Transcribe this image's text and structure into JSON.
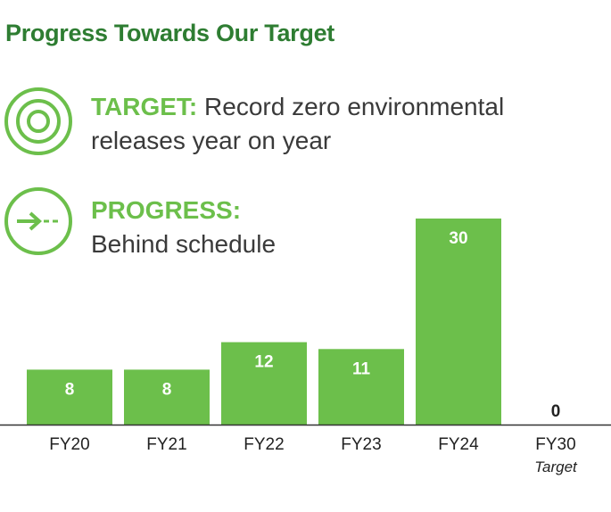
{
  "header": {
    "title": "Progress Towards Our Target"
  },
  "target": {
    "lead": "TARGET:",
    "text_line1": "Record zero environmental",
    "text_line2": "releases year on year",
    "icon": "target-icon"
  },
  "progress": {
    "lead": "PROGRESS:",
    "text": "Behind schedule",
    "icon": "arrow-right-icon"
  },
  "colors": {
    "bar": "#6cbf4b",
    "title": "#2e7d32",
    "accent": "#6cbf4b",
    "axis": "#333333"
  },
  "chart_data": {
    "type": "bar",
    "categories": [
      "FY20",
      "FY21",
      "FY22",
      "FY23",
      "FY24",
      "FY30"
    ],
    "category_sublabels": [
      "",
      "",
      "",
      "",
      "",
      "Target"
    ],
    "values": [
      8,
      8,
      12,
      11,
      30,
      0
    ],
    "data_labels": [
      "8",
      "8",
      "12",
      "11",
      "30",
      "0"
    ],
    "ylim": [
      0,
      30
    ],
    "grid": false,
    "legend": "none"
  }
}
